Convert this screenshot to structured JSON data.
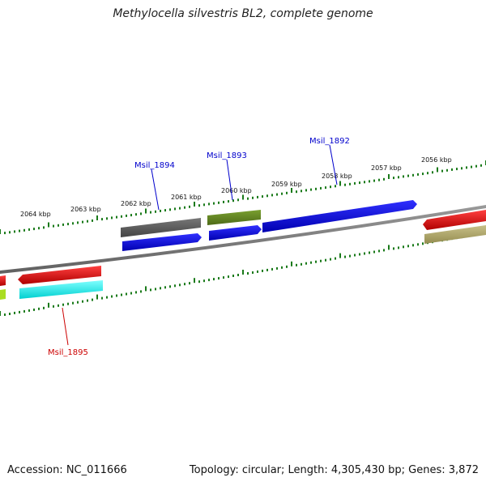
{
  "title": "Methylocella silvestris BL2, complete genome",
  "footer": {
    "accession": "Accession: NC_011666",
    "summary": "Topology: circular; Length: 4,305,430 bp; Genes: 3,872"
  },
  "scale_labels": [
    "2056 kbp",
    "2057 kbp",
    "2058 kbp",
    "2059 kbp",
    "2060 kbp",
    "2061 kbp",
    "2062 kbp",
    "2063 kbp",
    "2064 kbp"
  ],
  "gene_labels": [
    {
      "text": "Msil_1892",
      "color": "#0000cc"
    },
    {
      "text": "Msil_1893",
      "color": "#0000cc"
    },
    {
      "text": "Msil_1894",
      "color": "#0000cc"
    },
    {
      "text": "Msil_1895",
      "color": "#cc0000"
    }
  ],
  "colors": {
    "backbone": "#7f7f7f",
    "ticks": "#1a7a1a",
    "forward_gene": "#0000ee",
    "reverse_gene": "#ee0000",
    "gray_gene": "#666666",
    "olive_gene": "#6b8e23",
    "cyan_gene": "#00ffff",
    "khaki_gene": "#b8b070",
    "lime_gene": "#aadd22"
  }
}
